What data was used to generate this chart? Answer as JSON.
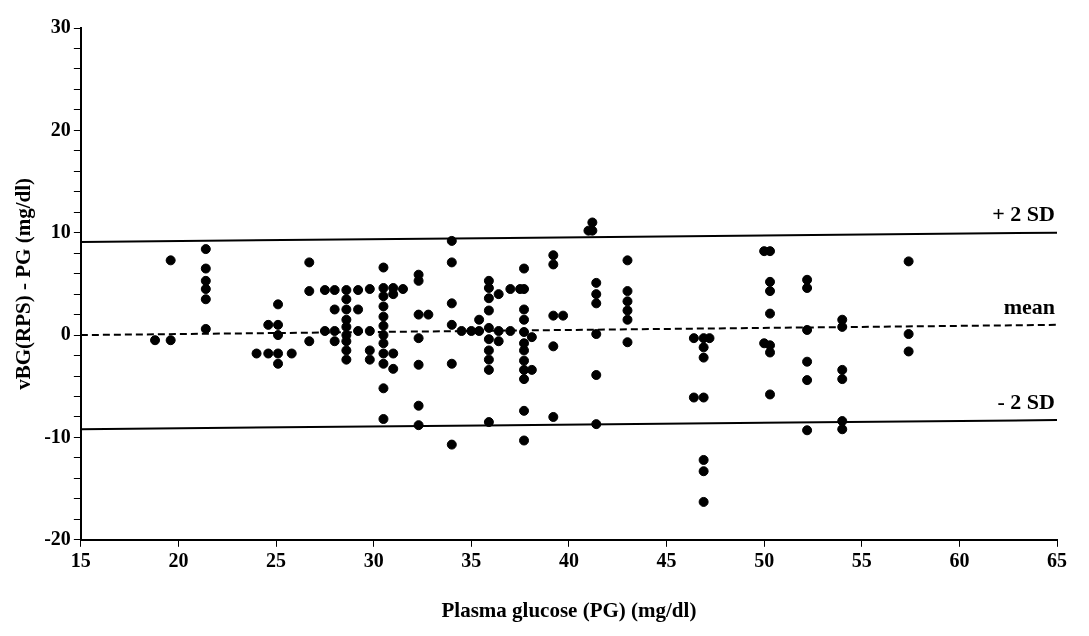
{
  "chart_data": {
    "type": "scatter",
    "xlabel": "Plasma glucose (PG) (mg/dl)",
    "ylabel": "vBG(RPS) - PG (mg/dl)",
    "xlim": [
      15,
      65
    ],
    "xticks": [
      15,
      20,
      25,
      30,
      35,
      40,
      45,
      50,
      55,
      60,
      65
    ],
    "ylim": [
      -20,
      30
    ],
    "yticks": [
      -20,
      {
        "value": -18,
        "label": null
      },
      {
        "value": -16,
        "label": null
      },
      {
        "value": -14,
        "label": null
      },
      {
        "value": -12,
        "label": null
      },
      -10,
      {
        "value": -8,
        "label": null
      },
      {
        "value": -6,
        "label": null
      },
      {
        "value": -4,
        "label": null
      },
      {
        "value": -2,
        "label": null
      },
      0,
      {
        "value": 2,
        "label": null
      },
      {
        "value": 4,
        "label": null
      },
      {
        "value": 6,
        "label": null
      },
      {
        "value": 8,
        "label": null
      },
      10,
      {
        "value": 12,
        "label": null
      },
      {
        "value": 14,
        "label": null
      },
      {
        "value": 16,
        "label": null
      },
      {
        "value": 18,
        "label": null
      },
      20,
      {
        "value": 22,
        "label": null
      },
      {
        "value": 24,
        "label": null
      },
      {
        "value": 26,
        "label": null
      },
      {
        "value": 28,
        "label": null
      },
      30
    ],
    "grid": false,
    "legend": false,
    "series": [
      {
        "color": "#000000",
        "marker": "circle",
        "x": [
          18.8,
          19.6,
          19.6,
          21.4,
          21.4,
          21.4,
          21.4,
          21.4,
          21.4,
          24,
          24.6,
          24.6,
          25.1,
          25.1,
          25.1,
          25.1,
          25.1,
          25.8,
          26.7,
          26.7,
          26.7,
          27.5,
          27.5,
          28,
          28,
          28,
          28,
          28.6,
          28.6,
          28.6,
          28.6,
          28.6,
          28.6,
          28.6,
          28.6,
          28.6,
          29.2,
          29.2,
          29.2,
          29.8,
          29.8,
          29.8,
          29.8,
          30.5,
          30.5,
          30.5,
          30.5,
          30.5,
          30.5,
          30.5,
          30.5,
          30.5,
          30.5,
          30.5,
          30.5,
          31,
          31,
          31,
          31,
          31.5,
          32.3,
          32.3,
          32.3,
          32.3,
          32.3,
          32.3,
          32.3,
          32.8,
          34,
          34,
          34,
          34,
          34,
          34,
          34.5,
          35,
          35.4,
          35.4,
          35.9,
          35.9,
          35.9,
          35.9,
          35.9,
          35.9,
          35.9,
          35.9,
          35.9,
          35.9,
          36.4,
          36.4,
          36.4,
          37,
          37,
          37.5,
          37.7,
          37.7,
          37.7,
          37.7,
          37.7,
          37.7,
          37.7,
          37.7,
          37.7,
          37.7,
          37.7,
          37.7,
          38.1,
          38.1,
          39.2,
          39.2,
          39.2,
          39.2,
          39.2,
          39.7,
          41,
          41.2,
          41.2,
          41.4,
          41.4,
          41.4,
          41.4,
          41.4,
          41.4,
          43,
          43,
          43,
          43,
          43,
          43,
          46.4,
          46.4,
          46.9,
          46.9,
          46.9,
          46.9,
          46.9,
          46.9,
          46.9,
          47.2,
          50,
          50,
          50.3,
          50.3,
          50.3,
          50.3,
          50.3,
          50.3,
          50.3,
          52.2,
          52.2,
          52.2,
          52.2,
          52.2,
          52.2,
          54,
          54,
          54,
          54,
          54,
          54,
          57.4,
          57.4,
          57.4
        ],
        "values": [
          -0.5,
          7.3,
          -0.5,
          8.4,
          6.5,
          5.3,
          4.5,
          3.5,
          0.6,
          -1.8,
          1,
          -1.8,
          3,
          1,
          0,
          -1.8,
          -2.8,
          -1.8,
          7.1,
          4.3,
          -0.6,
          4.4,
          0.4,
          4.4,
          2.5,
          0.4,
          -0.6,
          4.4,
          3.5,
          2.5,
          1.5,
          0.8,
          0,
          -0.6,
          -1.5,
          -2.4,
          4.4,
          2.5,
          0.4,
          4.5,
          0.4,
          -1.5,
          -2.4,
          6.6,
          4.6,
          3.8,
          2.8,
          1.8,
          0.9,
          0,
          -0.8,
          -1.8,
          -2.8,
          -5.2,
          -8.2,
          4.6,
          4,
          -1.8,
          -3.3,
          4.5,
          5.9,
          5.3,
          2,
          -0.3,
          -2.9,
          -6.9,
          -8.8,
          2,
          9.2,
          7.1,
          3.1,
          1,
          -2.8,
          -10.7,
          0.4,
          0.4,
          0.4,
          1.5,
          5.3,
          4.6,
          3.6,
          2.4,
          0.7,
          -0.4,
          -1.5,
          -2.4,
          -3.4,
          -8.5,
          4,
          0.4,
          -0.6,
          4.5,
          0.4,
          4.5,
          6.5,
          4.5,
          2.5,
          1.5,
          0.3,
          -0.8,
          -1.5,
          -2.5,
          -3.4,
          -4.3,
          -7.4,
          -10.3,
          -0.2,
          -3.4,
          7.8,
          6.9,
          1.9,
          -1.1,
          -8,
          1.9,
          10.2,
          11,
          10.2,
          5.1,
          4,
          3.1,
          0.1,
          -3.9,
          -8.7,
          7.3,
          4.3,
          3.3,
          2.4,
          1.5,
          -0.7,
          -0.3,
          -6.1,
          -0.3,
          -1.2,
          -2.2,
          -6.1,
          -12.2,
          -13.3,
          -16.3,
          -0.3,
          8.2,
          -0.8,
          8.2,
          5.2,
          4.3,
          2.1,
          -1,
          -1.7,
          -5.8,
          5.4,
          4.6,
          0.5,
          -2.6,
          -4.4,
          -9.3,
          1.5,
          0.8,
          -3.4,
          -4.3,
          -8.4,
          -9.2,
          7.2,
          0.1,
          -1.6
        ]
      },
      {
        "type": "line",
        "name": "+ 2 SD",
        "color": "#000000",
        "marker": "none",
        "line_style": "solid",
        "x": [
          15,
          65
        ],
        "values": [
          9.1,
          10
        ]
      },
      {
        "type": "line",
        "name": "mean",
        "color": "#000000",
        "marker": "none",
        "line_style": "dashed",
        "x": [
          15,
          65
        ],
        "values": [
          0,
          1
        ]
      },
      {
        "type": "line",
        "name": "- 2 SD",
        "color": "#000000",
        "marker": "none",
        "line_style": "solid",
        "x": [
          15,
          65
        ],
        "values": [
          -9.2,
          -8.3
        ]
      }
    ]
  }
}
